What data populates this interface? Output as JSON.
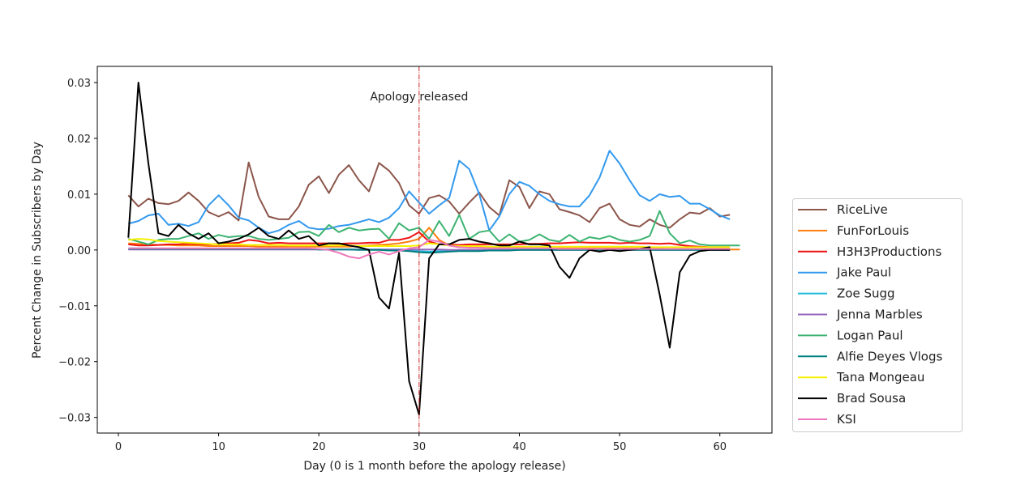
{
  "chart_data": {
    "type": "line",
    "title": "",
    "xlabel": "Day (0 is 1 month before the apology release)",
    "ylabel": "Percent Change in Subscribers by Day",
    "xlim": [
      -2.1,
      65.2
    ],
    "ylim": [
      -0.0328,
      0.0329
    ],
    "xticks": [
      0,
      10,
      20,
      30,
      40,
      50,
      60
    ],
    "yticks": [
      0.03,
      0.02,
      0.01,
      0.0,
      -0.01,
      -0.02,
      -0.03
    ],
    "ytick_labels": [
      "0.03",
      "0.02",
      "0.01",
      "0.00",
      "−0.01",
      "−0.02",
      "−0.03"
    ],
    "grid": false,
    "legend_position": "outside-right",
    "annotation": {
      "text": "Apology released",
      "x": 30,
      "y": 0.0275
    },
    "vline": {
      "x": 30,
      "color": "#cc2222"
    },
    "x_start": 1,
    "series": [
      {
        "name": "RiceLive",
        "color": "#8c564b",
        "values": [
          0.0098,
          0.0078,
          0.0092,
          0.0084,
          0.0082,
          0.0088,
          0.0103,
          0.0088,
          0.0068,
          0.006,
          0.0068,
          0.0053,
          0.0157,
          0.0095,
          0.006,
          0.0055,
          0.0055,
          0.0078,
          0.0117,
          0.0132,
          0.0102,
          0.0135,
          0.0152,
          0.0125,
          0.0105,
          0.0156,
          0.0142,
          0.012,
          0.008,
          0.0065,
          0.0093,
          0.0098,
          0.0087,
          0.0065,
          0.0085,
          0.0103,
          0.0077,
          0.0062,
          0.0125,
          0.0113,
          0.0075,
          0.0105,
          0.01,
          0.0073,
          0.0068,
          0.0062,
          0.005,
          0.0075,
          0.0083,
          0.0055,
          0.0045,
          0.0042,
          0.0055,
          0.0045,
          0.004,
          0.0055,
          0.0067,
          0.0065,
          0.0075,
          0.006,
          0.0063
        ]
      },
      {
        "name": "FunForLouis",
        "color": "#ff7f0e",
        "values": [
          0.0012,
          0.0011,
          0.001,
          0.0009,
          0.0009,
          0.0008,
          0.0008,
          0.0008,
          0.0007,
          0.0007,
          0.0007,
          0.0007,
          0.0007,
          0.0006,
          0.0006,
          0.0006,
          0.0006,
          0.0006,
          0.0006,
          0.0006,
          0.0006,
          0.0006,
          0.0006,
          0.0007,
          0.0008,
          0.0009,
          0.001,
          0.0012,
          0.0015,
          0.002,
          0.004,
          0.0018,
          0.0008,
          0.0005,
          0.0005,
          0.0004,
          0.0004,
          0.0004,
          0.0004,
          0.0004,
          0.0003,
          0.0003,
          0.0003,
          0.0003,
          0.0003,
          0.0003,
          0.0003,
          0.0003,
          0.0003,
          0.0003,
          0.0003,
          0.0003,
          0.0003,
          0.0003,
          0.0002,
          0.0002,
          0.0002,
          0.0002,
          0.0002,
          0.0002,
          0.0001,
          0.0001
        ]
      },
      {
        "name": "H3H3Productions",
        "color": "#ee1111",
        "values": [
          0.001,
          0.0008,
          0.0008,
          0.0009,
          0.001,
          0.001,
          0.0011,
          0.001,
          0.001,
          0.0011,
          0.0012,
          0.0013,
          0.0018,
          0.0016,
          0.0012,
          0.0013,
          0.0012,
          0.0012,
          0.0012,
          0.0012,
          0.0012,
          0.0011,
          0.0012,
          0.0012,
          0.0013,
          0.0013,
          0.0018,
          0.0018,
          0.0022,
          0.0032,
          0.0015,
          0.001,
          0.001,
          0.0009,
          0.001,
          0.001,
          0.001,
          0.001,
          0.001,
          0.001,
          0.0011,
          0.0011,
          0.0012,
          0.0012,
          0.0013,
          0.0014,
          0.0013,
          0.0013,
          0.0013,
          0.0012,
          0.0013,
          0.0012,
          0.0012,
          0.0011,
          0.0012,
          0.0009,
          0.0007,
          0.0006,
          0.0005,
          0.0005,
          0.0005
        ]
      },
      {
        "name": "Jake Paul",
        "color": "#3399ee",
        "values": [
          0.0047,
          0.0052,
          0.0062,
          0.0065,
          0.0045,
          0.0047,
          0.0043,
          0.005,
          0.008,
          0.0098,
          0.008,
          0.0058,
          0.0053,
          0.004,
          0.003,
          0.0035,
          0.0045,
          0.0052,
          0.004,
          0.0037,
          0.0038,
          0.0043,
          0.0045,
          0.005,
          0.0055,
          0.005,
          0.0058,
          0.0075,
          0.0105,
          0.0085,
          0.0065,
          0.008,
          0.0093,
          0.016,
          0.0145,
          0.01,
          0.0035,
          0.006,
          0.01,
          0.0122,
          0.0115,
          0.01,
          0.0088,
          0.0082,
          0.0078,
          0.0078,
          0.0098,
          0.013,
          0.0178,
          0.0155,
          0.0125,
          0.0098,
          0.0088,
          0.01,
          0.0095,
          0.0097,
          0.0083,
          0.0083,
          0.0073,
          0.0062,
          0.0055
        ]
      },
      {
        "name": "Zoe Sugg",
        "color": "#22bbdd",
        "values": [
          0.0003,
          0.0003,
          0.0003,
          0.0002,
          0.0002,
          0.0002,
          0.0002,
          0.0002,
          0.0002,
          0.0002,
          0.0002,
          0.0002,
          0.0002,
          0.0002,
          0.0002,
          0.0002,
          0.0002,
          0.0002,
          0.0002,
          0.0001,
          0.0001,
          0.0001,
          0.0001,
          0.0001,
          0.0001,
          0.0001,
          0.0001,
          0.0001,
          0.0,
          -0.0002,
          -0.0003,
          -0.0002,
          -0.0001,
          0.0,
          0.0,
          0.0,
          0.0,
          0.0,
          0.0,
          0.0001,
          0.0001,
          0.0001,
          0.0001,
          0.0001,
          0.0001,
          0.0001,
          0.0001,
          0.0001,
          0.0001,
          0.0001,
          0.0001,
          0.0001,
          0.0001,
          0.0001,
          0.0001,
          0.0001,
          0.0001,
          0.0001,
          0.0001,
          0.0001,
          0.0001
        ]
      },
      {
        "name": "Jenna Marbles",
        "color": "#9467bd",
        "values": [
          0.0001,
          0.0001,
          0.0001,
          0.0001,
          0.0001,
          0.0001,
          0.0001,
          0.0001,
          0.0001,
          0.0001,
          0.0001,
          0.0001,
          0.0001,
          0.0001,
          0.0001,
          0.0001,
          0.0001,
          0.0001,
          0.0001,
          0.0001,
          0.0001,
          0.0001,
          0.0001,
          0.0001,
          0.0001,
          0.0001,
          0.0001,
          0.0001,
          0.0001,
          0.0001,
          0.0001,
          0.0001,
          0.0,
          0.0,
          0.0,
          0.0,
          0.0,
          0.0,
          0.0,
          0.0,
          0.0,
          0.0,
          0.0,
          0.0,
          0.0,
          0.0,
          0.0,
          0.0,
          0.0,
          0.0,
          0.0,
          0.0,
          0.0,
          0.0,
          0.0,
          0.0,
          0.0,
          0.0,
          0.0,
          0.0,
          0.0
        ]
      },
      {
        "name": "Logan Paul",
        "color": "#3cb371",
        "values": [
          0.002,
          0.0015,
          0.001,
          0.0018,
          0.002,
          0.002,
          0.0025,
          0.003,
          0.002,
          0.0027,
          0.0023,
          0.0025,
          0.0025,
          0.002,
          0.0018,
          0.002,
          0.0022,
          0.0032,
          0.0033,
          0.0025,
          0.0045,
          0.0032,
          0.004,
          0.0035,
          0.0037,
          0.0038,
          0.002,
          0.0048,
          0.0035,
          0.004,
          0.002,
          0.0052,
          0.0025,
          0.0063,
          0.002,
          0.0032,
          0.0035,
          0.0015,
          0.0028,
          0.0015,
          0.0018,
          0.0028,
          0.0018,
          0.0015,
          0.0027,
          0.0015,
          0.0023,
          0.002,
          0.0025,
          0.0018,
          0.0015,
          0.0018,
          0.0025,
          0.007,
          0.003,
          0.0012,
          0.0017,
          0.001,
          0.0008,
          0.0008,
          0.0008,
          0.0008
        ]
      },
      {
        "name": "Alfie Deyes Vlogs",
        "color": "#008080",
        "values": [
          0.0002,
          0.0002,
          0.0002,
          0.0002,
          0.0002,
          0.0002,
          0.0002,
          0.0002,
          0.0002,
          0.0002,
          0.0002,
          0.0002,
          0.0002,
          0.0002,
          0.0002,
          0.0002,
          0.0002,
          0.0002,
          0.0002,
          0.0001,
          0.0001,
          0.0001,
          0.0001,
          0.0,
          0.0,
          0.0,
          -0.0001,
          -0.0001,
          -0.0002,
          -0.0004,
          -0.0005,
          -0.0004,
          -0.0003,
          -0.0002,
          -0.0002,
          -0.0002,
          -0.0001,
          -0.0001,
          -0.0001,
          0.0,
          0.0,
          0.0,
          0.0,
          0.0,
          0.0,
          0.0,
          0.0,
          0.0,
          0.0,
          0.0,
          0.0,
          0.0,
          0.0,
          0.0,
          0.0,
          0.0,
          0.0,
          0.0,
          0.0,
          0.0,
          0.0
        ]
      },
      {
        "name": "Tana Mongeau",
        "color": "#f5f000",
        "values": [
          0.0018,
          0.002,
          0.0019,
          0.0016,
          0.0015,
          0.0014,
          0.0013,
          0.0012,
          0.0011,
          0.001,
          0.001,
          0.001,
          0.0009,
          0.0009,
          0.0009,
          0.0009,
          0.0008,
          0.0008,
          0.0008,
          0.0008,
          0.0008,
          0.0008,
          0.0008,
          0.0007,
          0.0007,
          0.0007,
          0.0007,
          0.0007,
          0.0007,
          0.0008,
          0.0012,
          0.001,
          0.0008,
          0.0007,
          0.0007,
          0.0007,
          0.0006,
          0.0006,
          0.0006,
          0.0006,
          0.0006,
          0.0006,
          0.0006,
          0.0006,
          0.0006,
          0.0006,
          0.0006,
          0.0006,
          0.0006,
          0.0006,
          0.0006,
          0.0006,
          0.0005,
          0.0005,
          0.0005,
          0.0005,
          0.0005,
          0.0005,
          0.0005,
          0.0005,
          0.0005
        ]
      },
      {
        "name": "Brad Sousa",
        "color": "#000000",
        "values": [
          0.0022,
          0.03,
          0.0155,
          0.003,
          0.0025,
          0.0045,
          0.003,
          0.002,
          0.003,
          0.0012,
          0.0015,
          0.002,
          0.0028,
          0.004,
          0.0025,
          0.002,
          0.0035,
          0.002,
          0.0025,
          0.0008,
          0.0012,
          0.0012,
          0.0008,
          0.0005,
          0.0,
          -0.0085,
          -0.0105,
          -0.0005,
          -0.0235,
          -0.0295,
          -0.0015,
          0.001,
          0.001,
          0.0018,
          0.002,
          0.0015,
          0.0012,
          0.0008,
          0.0008,
          0.0015,
          0.001,
          0.001,
          0.0008,
          -0.003,
          -0.005,
          -0.0015,
          0.0,
          -0.0003,
          0.0,
          -0.0002,
          0.0,
          0.0002,
          0.0005,
          -0.008,
          -0.0175,
          -0.004,
          -0.001,
          -0.0002,
          0.0,
          0.0,
          0.0
        ]
      },
      {
        "name": "KSI",
        "color": "#ee77bb",
        "values": [
          0.0003,
          0.0003,
          0.0003,
          0.0003,
          0.0003,
          0.0003,
          0.0003,
          0.0003,
          0.0003,
          0.0003,
          0.0003,
          0.0003,
          0.0003,
          0.0003,
          0.0003,
          0.0003,
          0.0003,
          0.0003,
          0.0003,
          0.0002,
          0.0,
          -0.0005,
          -0.0012,
          -0.0015,
          -0.0008,
          -0.0003,
          -0.0008,
          -0.0002,
          0.0003,
          0.0005,
          0.0018,
          0.0015,
          0.0008,
          0.0005,
          0.0004,
          0.0004,
          0.0003,
          0.0003,
          0.0003,
          0.0003,
          0.0003,
          0.0003,
          0.0003,
          0.0002,
          0.0002,
          0.0002,
          0.0002,
          0.0002,
          0.0002,
          0.0002,
          0.0002,
          0.0002,
          0.0002,
          0.0002,
          0.0002,
          0.0002,
          0.0002,
          0.0002,
          0.0002,
          0.0002,
          0.0002
        ]
      }
    ]
  }
}
